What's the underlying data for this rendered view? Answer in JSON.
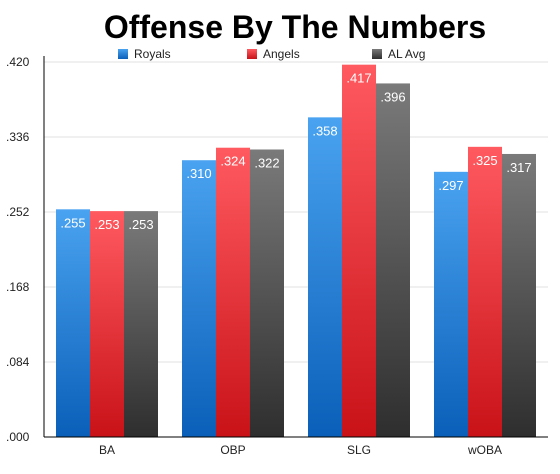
{
  "chart_data": {
    "type": "bar",
    "title": "Offense By The Numbers",
    "categories": [
      "BA",
      "OBP",
      "SLG",
      "wOBA"
    ],
    "series": [
      {
        "name": "Royals",
        "values": [
          0.255,
          0.31,
          0.358,
          0.297
        ],
        "labels": [
          ".255",
          ".310",
          ".358",
          ".297"
        ],
        "color_top": "#4aa3f0",
        "color_bottom": "#0a5fb8"
      },
      {
        "name": "Angels",
        "values": [
          0.253,
          0.324,
          0.417,
          0.325
        ],
        "labels": [
          ".253",
          ".324",
          ".417",
          ".325"
        ],
        "color_top": "#ff5a60",
        "color_bottom": "#c81218"
      },
      {
        "name": "AL Avg",
        "values": [
          0.253,
          0.322,
          0.396,
          0.317
        ],
        "labels": [
          ".253",
          ".322",
          ".396",
          ".317"
        ],
        "color_top": "#7a7a7a",
        "color_bottom": "#2e2e2e"
      }
    ],
    "yticks": [
      ".000",
      ".084",
      ".168",
      ".252",
      ".336",
      ".420"
    ],
    "ylim": [
      0,
      0.42
    ],
    "grid": true,
    "legend_position": "top"
  }
}
